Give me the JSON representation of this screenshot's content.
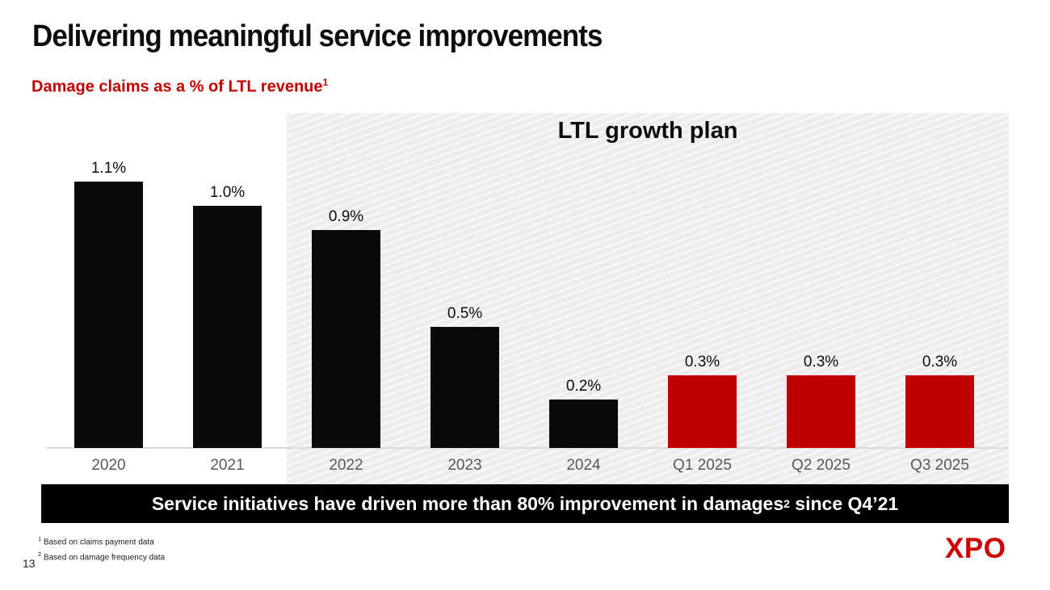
{
  "slide": {
    "title": "Delivering meaningful service improvements",
    "subtitle": "Damage claims as a % of LTL revenue",
    "subtitle_sup": "1",
    "page_number": "13",
    "logo_text": "XPO"
  },
  "chart_data": {
    "type": "bar",
    "title": "Damage claims as a % of LTL revenue",
    "categories": [
      "2020",
      "2021",
      "2022",
      "2023",
      "2024",
      "Q1 2025",
      "Q2 2025",
      "Q3 2025"
    ],
    "values": [
      1.1,
      1.0,
      0.9,
      0.5,
      0.2,
      0.3,
      0.3,
      0.3
    ],
    "value_labels": [
      "1.1%",
      "1.0%",
      "0.9%",
      "0.5%",
      "0.2%",
      "0.3%",
      "0.3%",
      "0.3%"
    ],
    "bar_colors": [
      "#0a0a0a",
      "#0a0a0a",
      "#0a0a0a",
      "#0a0a0a",
      "#0a0a0a",
      "#c00000",
      "#c00000",
      "#c00000"
    ],
    "highlight_region": {
      "label": "LTL growth plan",
      "start_category": "2022",
      "end_category": "Q3 2025"
    },
    "xlabel": "",
    "ylabel": "",
    "ylim": [
      0,
      1.2
    ],
    "grid": false,
    "legend": "none",
    "value_suffix": "%"
  },
  "banner": {
    "text_before_sup": "Service initiatives have driven more than 80% improvement in damages",
    "sup": "2",
    "text_after_sup": " since Q4’21"
  },
  "footnotes": [
    {
      "sup": "1",
      "text": "Based on claims payment data"
    },
    {
      "sup": "2",
      "text": "Based on damage frequency data"
    }
  ],
  "colors": {
    "accent_red": "#c00000",
    "logo_red": "#cc0000",
    "bar_black": "#0a0a0a",
    "axis_label_gray": "#595959",
    "baseline_gray": "#d9d9d9",
    "banner_black": "#000000"
  }
}
